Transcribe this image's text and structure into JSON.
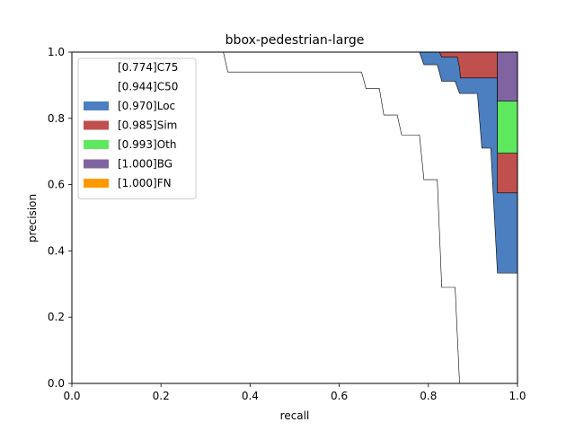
{
  "chart_data": {
    "type": "area",
    "title": "bbox-pedestrian-large",
    "xlabel": "recall",
    "ylabel": "precision",
    "xlim": [
      0,
      1
    ],
    "ylim": [
      0,
      1
    ],
    "xticks": [
      "0.0",
      "0.2",
      "0.4",
      "0.6",
      "0.8",
      "1.0"
    ],
    "yticks": [
      "0.0",
      "0.2",
      "0.4",
      "0.6",
      "0.8",
      "1.0"
    ],
    "grid": false,
    "legend_position": "top-left",
    "legend": [
      {
        "label": "[0.774]C75",
        "color": "#ffffff",
        "swatch": false
      },
      {
        "label": "[0.944]C50",
        "color": "#ffffff",
        "swatch": false
      },
      {
        "label": "[0.970]Loc",
        "color": "#4c7fbf",
        "swatch": true
      },
      {
        "label": "[0.985]Sim",
        "color": "#c0504d",
        "swatch": true
      },
      {
        "label": "[0.993]Oth",
        "color": "#5ee85e",
        "swatch": true
      },
      {
        "label": "[1.000]BG",
        "color": "#8064a2",
        "swatch": true
      },
      {
        "label": "[1.000]FN",
        "color": "#ff9900",
        "swatch": true
      }
    ],
    "series": [
      {
        "name": "C75",
        "color": "#ffffff",
        "points": [
          [
            0,
            1.0
          ],
          [
            0.34,
            1.0
          ],
          [
            0.35,
            0.94
          ],
          [
            0.65,
            0.94
          ],
          [
            0.66,
            0.89
          ],
          [
            0.69,
            0.89
          ],
          [
            0.7,
            0.81
          ],
          [
            0.73,
            0.81
          ],
          [
            0.74,
            0.75
          ],
          [
            0.78,
            0.75
          ],
          [
            0.79,
            0.615
          ],
          [
            0.82,
            0.615
          ],
          [
            0.83,
            0.29
          ],
          [
            0.86,
            0.29
          ],
          [
            0.87,
            0.0
          ]
        ]
      },
      {
        "name": "C50",
        "color": "#ffffff",
        "points": [
          [
            0,
            1.0
          ],
          [
            0.78,
            1.0
          ],
          [
            0.79,
            0.962
          ],
          [
            0.82,
            0.962
          ],
          [
            0.83,
            0.912
          ],
          [
            0.86,
            0.912
          ],
          [
            0.87,
            0.875
          ],
          [
            0.91,
            0.875
          ],
          [
            0.92,
            0.71
          ],
          [
            0.94,
            0.71
          ],
          [
            0.955,
            0.333
          ],
          [
            1.0,
            0.333
          ]
        ]
      },
      {
        "name": "Loc",
        "color": "#4c7fbf",
        "points": [
          [
            0,
            1.0
          ],
          [
            0.825,
            1.0
          ],
          [
            0.83,
            0.985
          ],
          [
            0.865,
            0.985
          ],
          [
            0.87,
            0.952
          ],
          [
            0.87,
            0.952
          ],
          [
            0.872,
            0.922
          ],
          [
            0.955,
            0.922
          ],
          [
            0.955,
            0.575
          ],
          [
            1.0,
            0.575
          ]
        ]
      },
      {
        "name": "Sim",
        "color": "#c0504d",
        "points": [
          [
            0,
            1.0
          ],
          [
            0.955,
            1.0
          ],
          [
            0.955,
            0.695
          ],
          [
            1.0,
            0.695
          ]
        ]
      },
      {
        "name": "Oth",
        "color": "#5ee85e",
        "points": [
          [
            0,
            1.0
          ],
          [
            0.955,
            1.0
          ],
          [
            0.955,
            0.852
          ],
          [
            1.0,
            0.852
          ]
        ]
      },
      {
        "name": "BG",
        "color": "#8064a2",
        "points": [
          [
            0,
            1.0
          ],
          [
            1.0,
            1.0
          ]
        ]
      },
      {
        "name": "FN",
        "color": "#ff9900",
        "points": [
          [
            0,
            1.0
          ],
          [
            1.0,
            1.0
          ]
        ]
      }
    ]
  }
}
